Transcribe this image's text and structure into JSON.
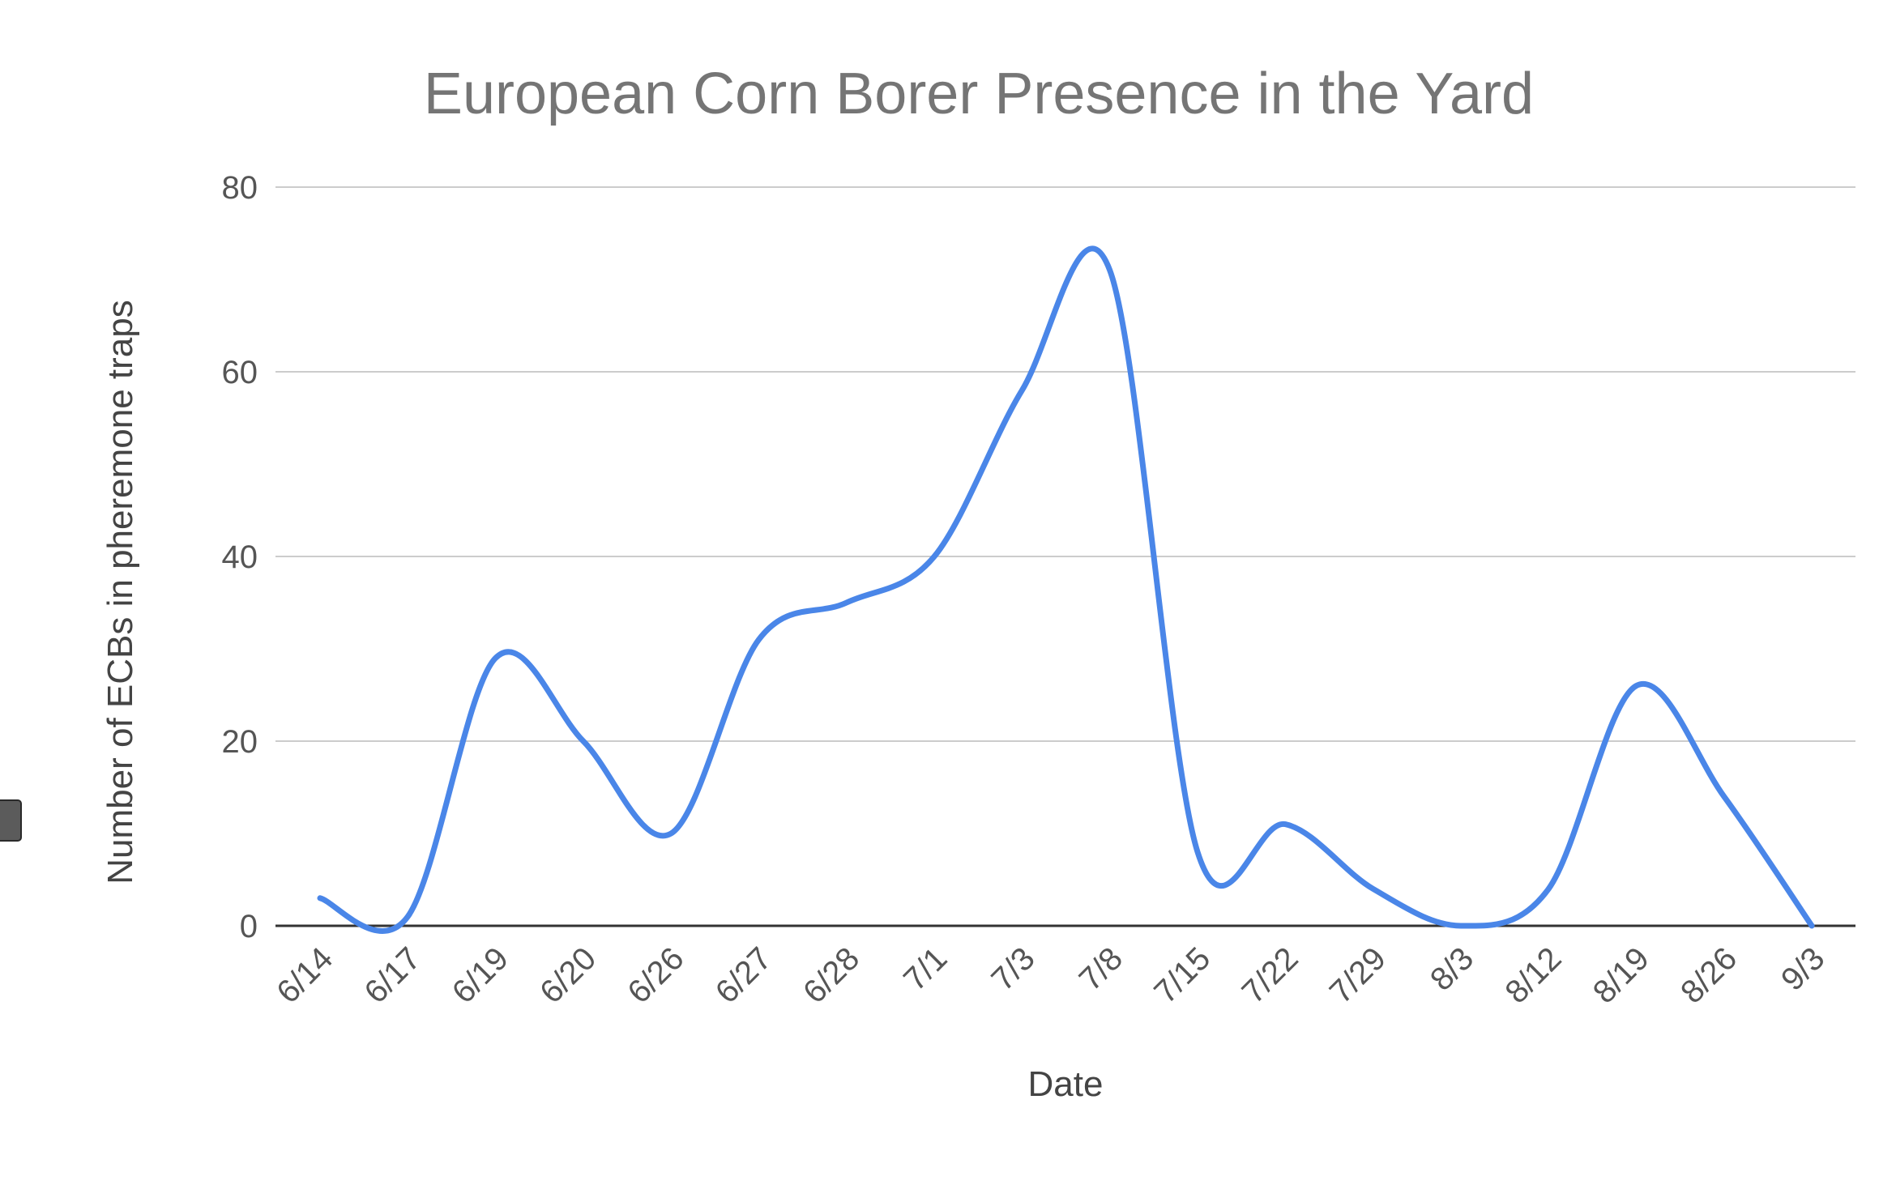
{
  "chart_data": {
    "type": "line",
    "title": "European Corn Borer Presence in the Yard",
    "xlabel": "Date",
    "ylabel": "Number of ECBs in pheremone traps",
    "categories": [
      "6/14",
      "6/17",
      "6/19",
      "6/20",
      "6/26",
      "6/27",
      "6/28",
      "7/1",
      "7/3",
      "7/8",
      "7/15",
      "7/22",
      "7/29",
      "8/3",
      "8/12",
      "8/19",
      "8/26",
      "9/3"
    ],
    "series": [
      {
        "values": [
          3,
          1,
          29,
          20,
          10,
          31,
          35,
          40,
          58,
          71,
          8,
          11,
          4,
          0,
          4,
          26,
          14,
          0
        ],
        "color": "#4a86e8"
      }
    ],
    "ylim": [
      0,
      80
    ],
    "yticks": [
      0,
      20,
      40,
      60,
      80
    ],
    "grid": true,
    "legend": "none",
    "smooth": true
  }
}
